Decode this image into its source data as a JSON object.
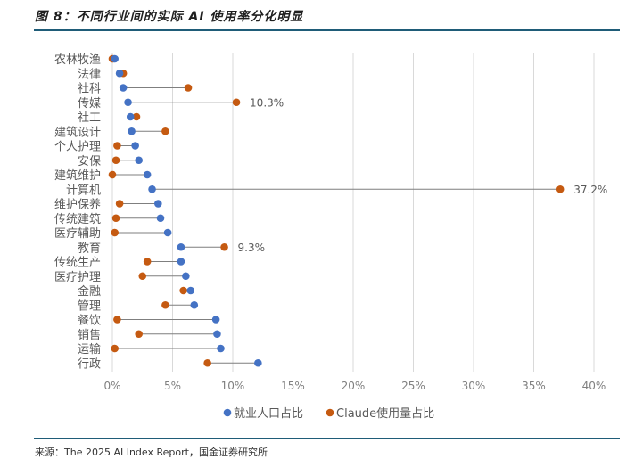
{
  "figure": {
    "title": "图 8：不同行业间的实际 AI 使用率分化明显",
    "source": "来源：The 2025 AI Index Report，国金证券研究所"
  },
  "chart_data": {
    "type": "dumbbell",
    "title": "",
    "xlabel": "",
    "ylabel": "",
    "xlim": [
      0,
      40
    ],
    "x_ticks": [
      "0%",
      "5%",
      "10%",
      "15%",
      "20%",
      "25%",
      "30%",
      "35%",
      "40%"
    ],
    "categories": [
      "农林牧渔",
      "法律",
      "社科",
      "传媒",
      "社工",
      "建筑设计",
      "个人护理",
      "安保",
      "建筑维护",
      "计算机",
      "维护保养",
      "传统建筑",
      "医疗辅助",
      "教育",
      "传统生产",
      "医疗护理",
      "金融",
      "管理",
      "餐饮",
      "销售",
      "运输",
      "行政"
    ],
    "series": [
      {
        "name": "就业人口占比",
        "color": "#4472c4",
        "values": [
          0.2,
          0.6,
          0.9,
          1.3,
          1.5,
          1.6,
          1.9,
          2.2,
          2.9,
          3.3,
          3.8,
          4.0,
          4.6,
          5.7,
          5.7,
          6.1,
          6.5,
          6.8,
          8.6,
          8.7,
          9.0,
          12.1
        ]
      },
      {
        "name": "Claude使用量占比",
        "color": "#c55a11",
        "values": [
          0.0,
          0.9,
          6.3,
          10.3,
          2.0,
          4.4,
          0.4,
          0.3,
          0.0,
          37.2,
          0.6,
          0.3,
          0.2,
          9.3,
          2.9,
          2.5,
          5.9,
          4.4,
          0.4,
          2.2,
          0.2,
          7.9
        ]
      }
    ],
    "data_labels": [
      {
        "category": "传媒",
        "text": "10.3%"
      },
      {
        "category": "计算机",
        "text": "37.2%"
      },
      {
        "category": "教育",
        "text": "9.3%"
      }
    ],
    "grid": "vertical",
    "legend_position": "bottom"
  }
}
